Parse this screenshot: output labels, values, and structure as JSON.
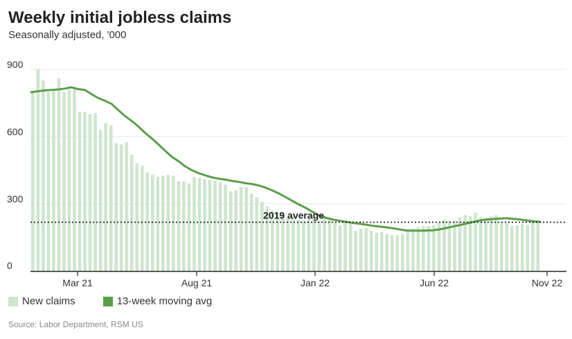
{
  "title": "Weekly initial jobless claims",
  "subtitle": "Seasonally adjusted, '000",
  "source": "Source: Labor Department, RSM US",
  "colors": {
    "bars": "#cfe5cf",
    "line": "#5a9e4a",
    "grid": "#e6e6e6",
    "axis": "#222222"
  },
  "chart_data": {
    "type": "bar",
    "x_tick_labels": [
      "Mar 21",
      "Aug 21",
      "Jan 22",
      "Jun 22",
      "Nov 22"
    ],
    "y_tick_labels": [
      "0",
      "300",
      "600",
      "900"
    ],
    "ylim": [
      0,
      920
    ],
    "grid": true,
    "legend_position": "bottom-left",
    "reference_line": {
      "label": "2019 average",
      "value": 218,
      "style": "dotted"
    },
    "series": [
      {
        "name": "New claims",
        "type": "bar",
        "values": [
          800,
          900,
          850,
          800,
          810,
          860,
          800,
          810,
          820,
          710,
          710,
          700,
          705,
          630,
          660,
          650,
          570,
          565,
          575,
          520,
          480,
          470,
          440,
          430,
          420,
          425,
          430,
          425,
          400,
          400,
          390,
          420,
          415,
          410,
          405,
          405,
          395,
          385,
          355,
          360,
          375,
          375,
          345,
          330,
          310,
          290,
          270,
          260,
          255,
          240,
          245,
          230,
          225,
          235,
          230,
          225,
          235,
          230,
          215,
          205,
          220,
          210,
          180,
          190,
          190,
          180,
          170,
          175,
          165,
          160,
          160,
          165,
          185,
          190,
          195,
          200,
          200,
          205,
          215,
          230,
          225,
          225,
          240,
          250,
          245,
          260,
          240,
          235,
          245,
          250,
          215,
          215,
          200,
          205,
          210,
          205,
          225,
          220
        ]
      },
      {
        "name": "13-week moving avg",
        "type": "line",
        "values": [
          798,
          802,
          806,
          808,
          810,
          814,
          820,
          812,
          808,
          790,
          772,
          760,
          746,
          718,
          692,
          670,
          645,
          617,
          592,
          565,
          537,
          510,
          490,
          467,
          450,
          437,
          427,
          418,
          412,
          408,
          402,
          398,
          392,
          388,
          382,
          372,
          360,
          346,
          330,
          313,
          297,
          282,
          264,
          248,
          238,
          230,
          225,
          220,
          215,
          211,
          207,
          202,
          199,
          195,
          191,
          186,
          181,
          180,
          180,
          181,
          182,
          186,
          192,
          199,
          205,
          212,
          219,
          226,
          230,
          232,
          234,
          236,
          233,
          230,
          226,
          222,
          220
        ]
      }
    ]
  }
}
